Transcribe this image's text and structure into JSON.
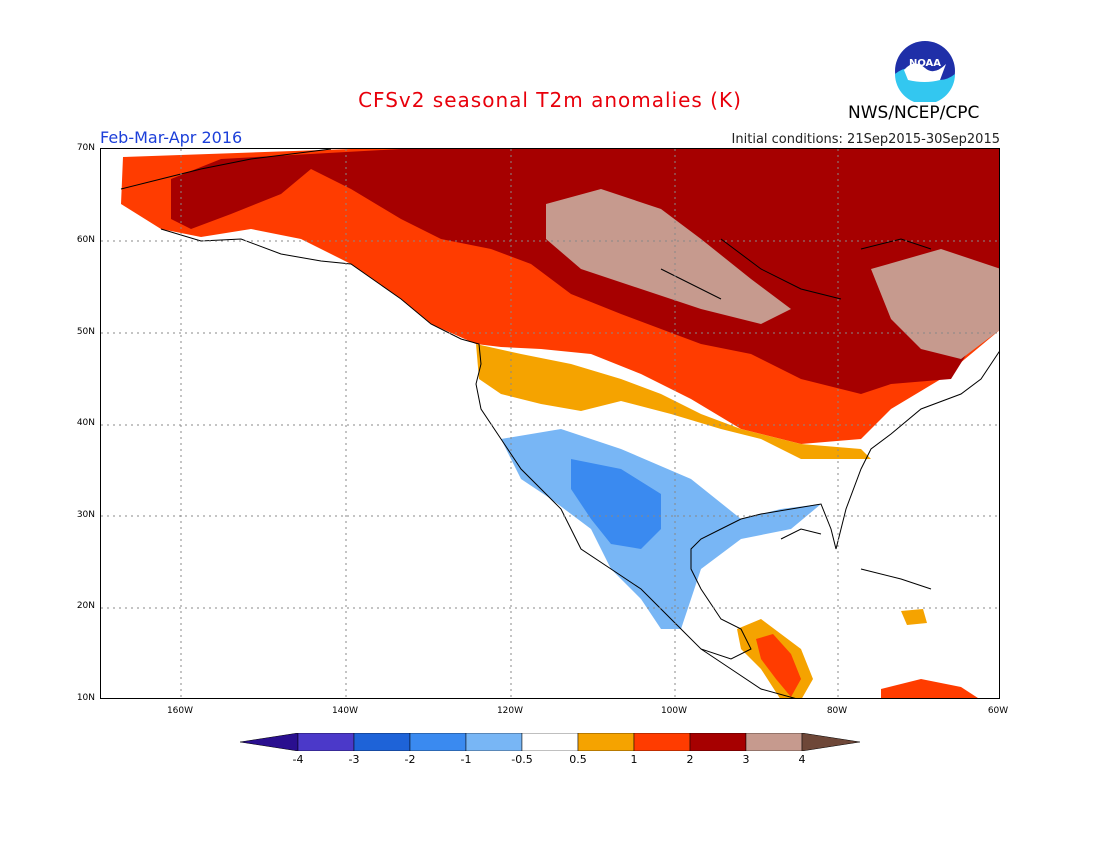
{
  "header": {
    "title": "CFSv2 seasonal T2m anomalies (K)",
    "season": "Feb-Mar-Apr 2016",
    "initial_conditions": "Initial conditions: 21Sep2015-30Sep2015",
    "agency": "NWS/NCEP/CPC",
    "logo_text": "NOAA"
  },
  "axes": {
    "lat_labels": [
      "70N",
      "60N",
      "50N",
      "40N",
      "30N",
      "20N",
      "10N"
    ],
    "lon_labels": [
      "160W",
      "140W",
      "120W",
      "100W",
      "80W",
      "60W"
    ]
  },
  "colorbar": {
    "labels": [
      "-4",
      "-3",
      "-2",
      "-1",
      "-0.5",
      "0.5",
      "1",
      "2",
      "3",
      "4"
    ],
    "colors": [
      "#2a0f8f",
      "#4b39c9",
      "#1e63d8",
      "#3a8af0",
      "#78b6f5",
      "#ffffff",
      "#f5a300",
      "#ff3c00",
      "#a60000",
      "#c69a8e",
      "#6e4738"
    ]
  },
  "map_colors": {
    "land_outline": "#000000",
    "grid": "#888888"
  }
}
